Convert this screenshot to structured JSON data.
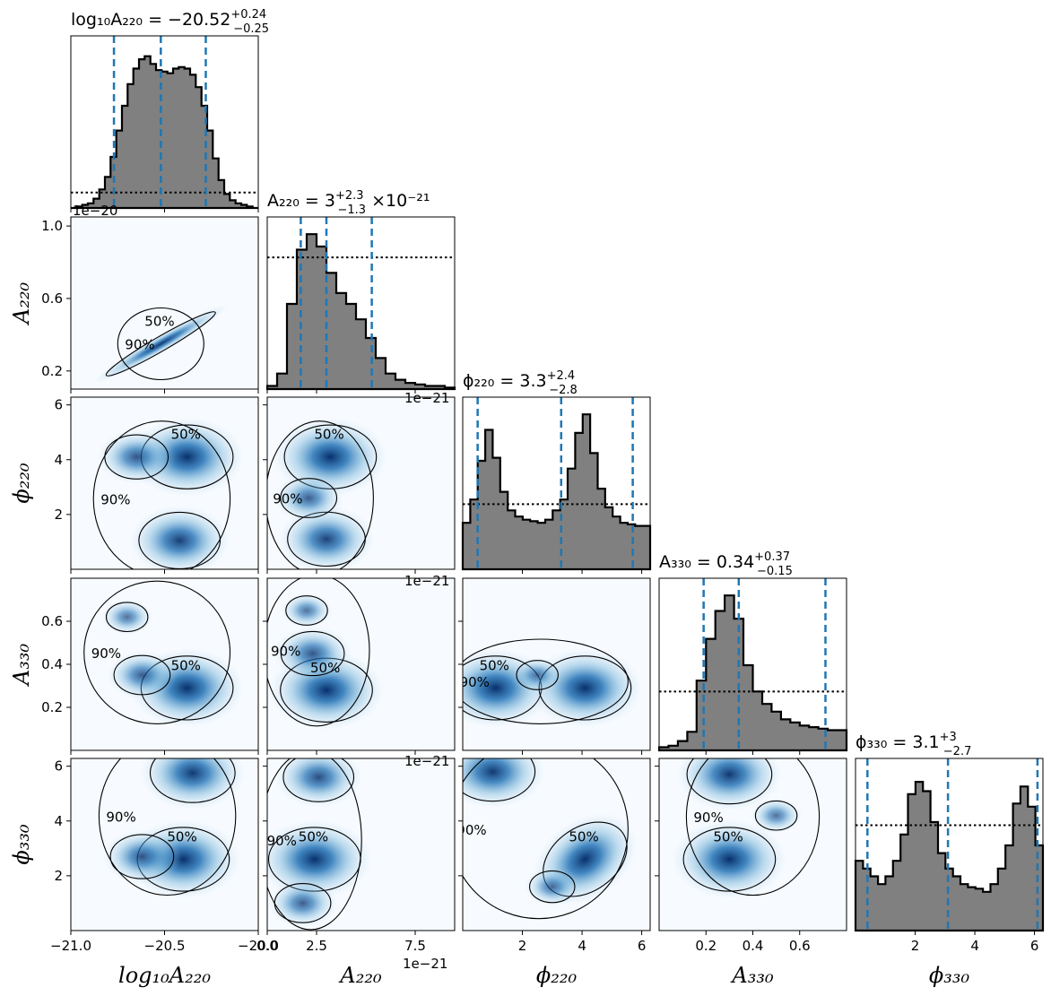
{
  "chart_data": {
    "type": "corner",
    "parameters": [
      {
        "key": "log10A220",
        "symbol": "log₁₀A₂₂₀",
        "range": [
          -21.0,
          -20.0
        ],
        "ticks": [
          -21.0,
          -20.5,
          -20.0
        ],
        "tick_labels": [
          "−21.0",
          "−20.5",
          "−20.0"
        ],
        "offset": "1e−20"
      },
      {
        "key": "A220",
        "symbol": "A₂₂₀",
        "range": [
          0.0,
          9.5
        ],
        "ticks": [
          0.0,
          2.5,
          7.5
        ],
        "tick_labels": [
          "0.0",
          "2.5",
          "7.5"
        ],
        "y_range": [
          0.1,
          1.05
        ],
        "y_ticks": [
          0.2,
          0.6,
          1.0
        ],
        "y_tick_labels": [
          "0.2",
          "0.6",
          "1.0"
        ],
        "offset": "1e−21"
      },
      {
        "key": "phi220",
        "symbol": "ϕ₂₂₀",
        "range": [
          0,
          6.283
        ],
        "ticks": [
          2,
          4,
          6
        ],
        "tick_labels": [
          "2",
          "4",
          "6"
        ]
      },
      {
        "key": "A330",
        "symbol": "A₃₃₀",
        "range": [
          0.0,
          0.8
        ],
        "ticks": [
          0.2,
          0.4,
          0.6
        ],
        "tick_labels": [
          "0.2",
          "0.4",
          "0.6"
        ]
      },
      {
        "key": "phi330",
        "symbol": "ϕ₃₃₀",
        "range": [
          0,
          6.283
        ],
        "ticks": [
          2,
          4,
          6
        ],
        "tick_labels": [
          "2",
          "4",
          "6"
        ]
      }
    ],
    "titles": [
      {
        "base": "log₁₀A₂₂₀ = −20.52",
        "sup": "+0.24",
        "sub": "−0.25",
        "suffix": ""
      },
      {
        "base": "A₂₂₀ = 3",
        "sup": "+2.3",
        "sub": "−1.3",
        "suffix": "×10⁻²¹"
      },
      {
        "base": "ϕ₂₂₀ = 3.3",
        "sup": "+2.4",
        "sub": "−2.8",
        "suffix": ""
      },
      {
        "base": "A₃₃₀ = 0.34",
        "sup": "+0.37",
        "sub": "−0.15",
        "suffix": ""
      },
      {
        "base": "ϕ₃₃₀ = 3.1",
        "sup": "+3",
        "sub": "−2.7",
        "suffix": ""
      }
    ],
    "quantiles": [
      [
        -20.77,
        -20.52,
        -20.28
      ],
      [
        1.7,
        3.0,
        5.3
      ],
      [
        0.5,
        3.3,
        5.7
      ],
      [
        0.19,
        0.34,
        0.71
      ],
      [
        0.4,
        3.1,
        6.1
      ]
    ],
    "histograms": [
      {
        "x": [
          -20.99,
          -20.96,
          -20.93,
          -20.9,
          -20.87,
          -20.84,
          -20.81,
          -20.78,
          -20.75,
          -20.72,
          -20.69,
          -20.66,
          -20.63,
          -20.6,
          -20.57,
          -20.54,
          -20.51,
          -20.48,
          -20.45,
          -20.42,
          -20.39,
          -20.36,
          -20.33,
          -20.3,
          -20.27,
          -20.24,
          -20.21,
          -20.18,
          -20.15,
          -20.12,
          -20.09,
          -20.06,
          -20.03
        ],
        "density": [
          0.0,
          0.01,
          0.02,
          0.03,
          0.06,
          0.12,
          0.2,
          0.33,
          0.5,
          0.66,
          0.8,
          0.9,
          0.96,
          0.98,
          0.93,
          0.89,
          0.88,
          0.87,
          0.9,
          0.91,
          0.9,
          0.86,
          0.78,
          0.66,
          0.5,
          0.32,
          0.18,
          0.09,
          0.05,
          0.03,
          0.02,
          0.01,
          0.0
        ],
        "prior": 0.1
      },
      {
        "x": [
          0.25,
          0.75,
          1.25,
          1.75,
          2.25,
          2.75,
          3.25,
          3.75,
          4.25,
          4.75,
          5.25,
          5.75,
          6.25,
          6.75,
          7.25,
          7.75,
          8.25,
          8.75,
          9.25
        ],
        "density": [
          0.02,
          0.1,
          0.55,
          0.9,
          1.0,
          0.92,
          0.75,
          0.62,
          0.55,
          0.45,
          0.33,
          0.2,
          0.1,
          0.06,
          0.04,
          0.03,
          0.02,
          0.02,
          0.01
        ],
        "prior": 0.85
      },
      {
        "x": [
          0.13,
          0.38,
          0.63,
          0.88,
          1.13,
          1.38,
          1.63,
          1.88,
          2.13,
          2.38,
          2.63,
          2.88,
          3.13,
          3.38,
          3.63,
          3.88,
          4.13,
          4.38,
          4.63,
          4.88,
          5.13,
          5.38,
          5.63,
          5.88,
          6.13
        ],
        "density": [
          0.3,
          0.45,
          0.7,
          0.9,
          0.72,
          0.5,
          0.38,
          0.34,
          0.32,
          0.31,
          0.3,
          0.32,
          0.38,
          0.45,
          0.65,
          0.88,
          1.0,
          0.75,
          0.52,
          0.4,
          0.34,
          0.3,
          0.29,
          0.28,
          0.28
        ],
        "prior": 0.42
      },
      {
        "x": [
          0.02,
          0.06,
          0.1,
          0.14,
          0.18,
          0.22,
          0.26,
          0.3,
          0.34,
          0.38,
          0.42,
          0.46,
          0.5,
          0.54,
          0.58,
          0.62,
          0.66,
          0.7,
          0.74,
          0.78
        ],
        "density": [
          0.02,
          0.03,
          0.06,
          0.12,
          0.45,
          0.72,
          0.9,
          1.0,
          0.85,
          0.55,
          0.38,
          0.3,
          0.25,
          0.2,
          0.18,
          0.16,
          0.15,
          0.14,
          0.13,
          0.13
        ],
        "prior": 0.38
      },
      {
        "x": [
          0.13,
          0.38,
          0.63,
          0.88,
          1.13,
          1.38,
          1.63,
          1.88,
          2.13,
          2.38,
          2.63,
          2.88,
          3.13,
          3.38,
          3.63,
          3.88,
          4.13,
          4.38,
          4.63,
          4.88,
          5.13,
          5.38,
          5.63,
          5.88,
          6.13
        ],
        "density": [
          0.45,
          0.4,
          0.35,
          0.3,
          0.35,
          0.45,
          0.62,
          0.88,
          0.96,
          0.9,
          0.7,
          0.5,
          0.4,
          0.35,
          0.3,
          0.28,
          0.27,
          0.25,
          0.3,
          0.4,
          0.55,
          0.82,
          0.93,
          0.8,
          0.55
        ],
        "prior": 0.68
      }
    ],
    "contour_labels": [
      "50%",
      "90%"
    ],
    "blobs": {
      "1-0": [
        {
          "x": -20.52,
          "y": 0.35,
          "w": 0.9
        }
      ],
      "2-0": [
        {
          "x": -20.38,
          "y": 4.1,
          "w": 1.0
        },
        {
          "x": -20.42,
          "y": 1.05,
          "w": 0.85
        },
        {
          "x": -20.65,
          "y": 4.1,
          "w": 0.6
        }
      ],
      "2-1": [
        {
          "x": 3.2,
          "y": 4.1,
          "w": 1.0
        },
        {
          "x": 3.0,
          "y": 1.1,
          "w": 0.8
        },
        {
          "x": 2.1,
          "y": 2.6,
          "w": 0.5
        }
      ],
      "3-0": [
        {
          "x": -20.38,
          "y": 0.29,
          "w": 1.0
        },
        {
          "x": -20.62,
          "y": 0.35,
          "w": 0.5
        },
        {
          "x": -20.7,
          "y": 0.62,
          "w": 0.3
        }
      ],
      "3-1": [
        {
          "x": 3.0,
          "y": 0.28,
          "w": 1.0
        },
        {
          "x": 2.3,
          "y": 0.45,
          "w": 0.6
        },
        {
          "x": 2.0,
          "y": 0.65,
          "w": 0.3
        }
      ],
      "3-2": [
        {
          "x": 1.1,
          "y": 0.29,
          "w": 1.0
        },
        {
          "x": 4.1,
          "y": 0.29,
          "w": 1.0
        },
        {
          "x": 2.5,
          "y": 0.35,
          "w": 0.3
        }
      ],
      "4-0": [
        {
          "x": -20.4,
          "y": 2.6,
          "w": 1.0
        },
        {
          "x": -20.35,
          "y": 5.75,
          "w": 0.9
        },
        {
          "x": -20.62,
          "y": 2.7,
          "w": 0.6
        }
      ],
      "4-1": [
        {
          "x": 2.4,
          "y": 2.6,
          "w": 1.0
        },
        {
          "x": 2.6,
          "y": 5.6,
          "w": 0.7
        },
        {
          "x": 1.8,
          "y": 1.0,
          "w": 0.5
        }
      ],
      "4-2": [
        {
          "x": 4.1,
          "y": 2.6,
          "w": 1.0
        },
        {
          "x": 1.0,
          "y": 5.8,
          "w": 0.9
        },
        {
          "x": 3.0,
          "y": 1.6,
          "w": 0.35
        }
      ],
      "4-3": [
        {
          "x": 0.3,
          "y": 2.6,
          "w": 1.0
        },
        {
          "x": 0.3,
          "y": 5.7,
          "w": 0.9
        },
        {
          "x": 0.5,
          "y": 4.2,
          "w": 0.3
        }
      ]
    }
  }
}
